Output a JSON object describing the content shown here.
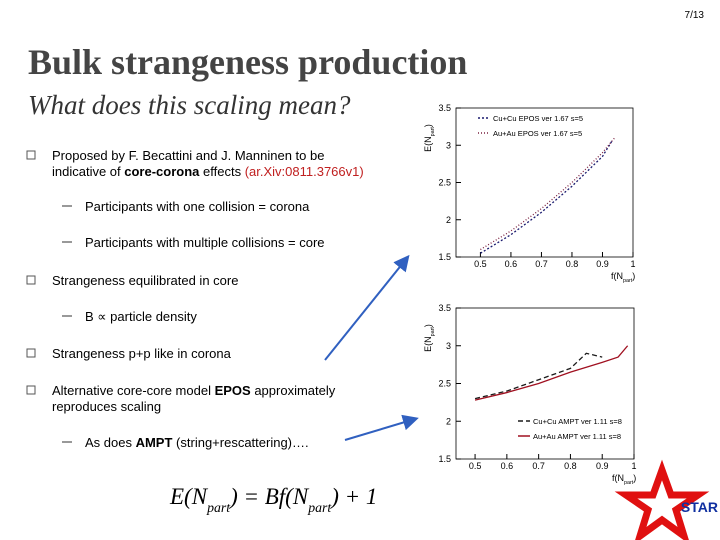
{
  "page_number": "7/13",
  "title": "Bulk strangeness production",
  "subtitle": "What does this scaling mean?",
  "bullets": [
    {
      "level": 1,
      "lines": [
        [
          {
            "text": "Proposed by F. Becattini and J. Manninen to be"
          }
        ],
        [
          {
            "text": "indicative of "
          },
          {
            "text": "core-corona",
            "style": "bold"
          },
          {
            "text": " effects "
          },
          {
            "text": "(ar.Xiv:0811.3766v1)",
            "style": "red"
          }
        ]
      ]
    },
    {
      "level": 2,
      "lines": [
        [
          {
            "text": "Participants with one collision = corona"
          }
        ]
      ]
    },
    {
      "level": 2,
      "lines": [
        [
          {
            "text": "Participants with multiple collisions = core"
          }
        ]
      ]
    },
    {
      "level": 1,
      "lines": [
        [
          {
            "text": "Strangeness equilibrated in core"
          }
        ]
      ]
    },
    {
      "level": 2,
      "lines": [
        [
          {
            "text": "B ∝ particle density"
          }
        ]
      ]
    },
    {
      "level": 1,
      "lines": [
        [
          {
            "text": "Strangeness p+p like in corona"
          }
        ]
      ]
    },
    {
      "level": 1,
      "lines": [
        [
          {
            "text": "Alternative core-core model "
          },
          {
            "text": "EPOS",
            "style": "bold"
          },
          {
            "text": " approximately"
          }
        ],
        [
          {
            "text": "reproduces scaling"
          }
        ]
      ]
    },
    {
      "level": 2,
      "lines": [
        [
          {
            "text": "As does "
          },
          {
            "text": "AMPT",
            "style": "bold"
          },
          {
            "text": " (string+rescattering)…."
          }
        ]
      ]
    }
  ],
  "formula": [
    "E(N",
    "part",
    ") = Bf(N",
    "part",
    ") + 1"
  ],
  "logo": "STAR",
  "charts": [
    {
      "type": "line",
      "y_label": [
        "E(N",
        "part",
        ")"
      ],
      "x_label": [
        "f(N",
        "part",
        ")"
      ],
      "xlim": [
        0.42,
        1
      ],
      "ylim": [
        1.5,
        3.5
      ],
      "xticks": [
        0.5,
        0.6,
        0.7,
        0.8,
        0.9,
        1
      ],
      "yticks": [
        1.5,
        2,
        2.5,
        3,
        3.5
      ],
      "series": [
        {
          "name": "Cu+Cu EPOS ver 1.67 s=5",
          "color": "#1a1a6e",
          "dash": "2,2",
          "x": [
            0.5,
            0.6,
            0.7,
            0.8,
            0.9,
            0.93
          ],
          "values": [
            1.55,
            1.8,
            2.1,
            2.45,
            2.85,
            3.05
          ]
        },
        {
          "name": "Au+Au EPOS ver 1.67 s=5",
          "color": "#7a2040",
          "dash": "1,2",
          "x": [
            0.5,
            0.6,
            0.7,
            0.8,
            0.9,
            0.94
          ],
          "values": [
            1.6,
            1.85,
            2.15,
            2.5,
            2.9,
            3.1
          ]
        }
      ]
    },
    {
      "type": "line",
      "y_label": [
        "E(N",
        "part",
        ")"
      ],
      "x_label": [
        "f(N",
        "part",
        ")"
      ],
      "xlim": [
        0.44,
        1
      ],
      "ylim": [
        1.5,
        3.5
      ],
      "xticks": [
        0.5,
        0.6,
        0.7,
        0.8,
        0.9,
        1
      ],
      "yticks": [
        1.5,
        2,
        2.5,
        3,
        3.5
      ],
      "series": [
        {
          "name": "Cu+Cu AMPT ver 1.11 s=8",
          "color": "#1a1a1a",
          "dash": "5,3",
          "x": [
            0.5,
            0.6,
            0.7,
            0.8,
            0.85,
            0.9
          ],
          "values": [
            2.3,
            2.4,
            2.55,
            2.7,
            2.9,
            2.85
          ]
        },
        {
          "name": "Au+Au AMPT ver 1.11 s=8",
          "color": "#a01020",
          "dash": "",
          "x": [
            0.5,
            0.6,
            0.7,
            0.8,
            0.9,
            0.95,
            0.98
          ],
          "values": [
            2.28,
            2.38,
            2.5,
            2.65,
            2.78,
            2.85,
            3.0
          ]
        }
      ]
    }
  ]
}
